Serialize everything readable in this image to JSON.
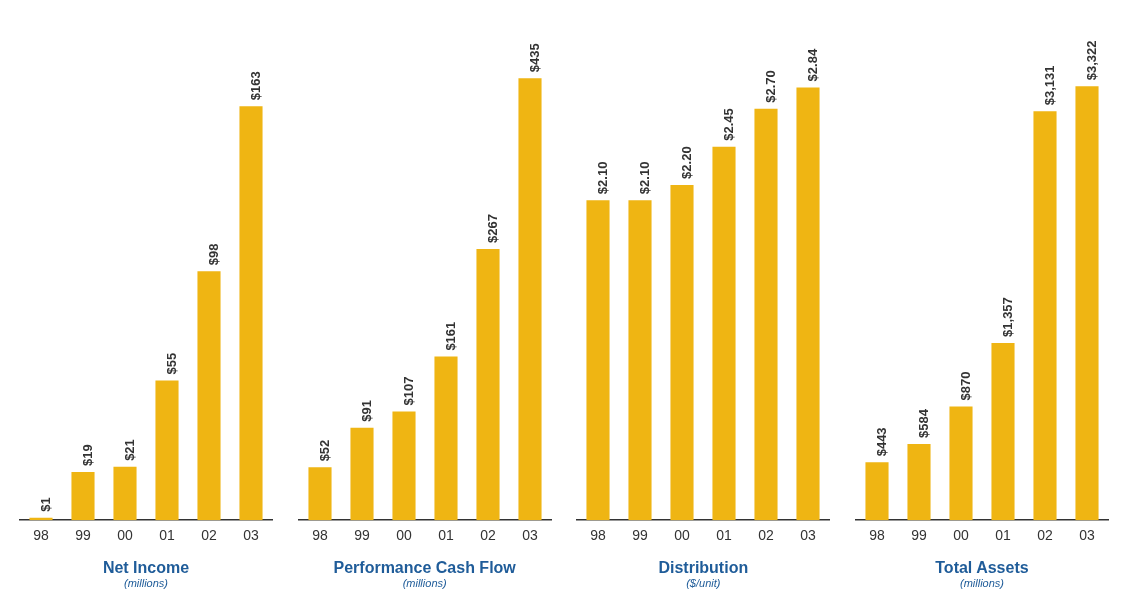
{
  "chart_data": [
    {
      "type": "bar",
      "title": "Net Income",
      "subtitle": "(millions)",
      "categories": [
        "98",
        "99",
        "00",
        "01",
        "02",
        "03"
      ],
      "values": [
        1,
        19,
        21,
        55,
        98,
        163
      ],
      "value_labels": [
        "$1",
        "$19",
        "$21",
        "$55",
        "$98",
        "$163"
      ],
      "color": "#efb513"
    },
    {
      "type": "bar",
      "title": "Performance Cash Flow",
      "subtitle": "(millions)",
      "categories": [
        "98",
        "99",
        "00",
        "01",
        "02",
        "03"
      ],
      "values": [
        52,
        91,
        107,
        161,
        267,
        435
      ],
      "value_labels": [
        "$52",
        "$91",
        "$107",
        "$161",
        "$267",
        "$435"
      ],
      "color": "#efb513"
    },
    {
      "type": "bar",
      "title": "Distribution",
      "subtitle": "($/unit)",
      "categories": [
        "98",
        "99",
        "00",
        "01",
        "02",
        "03"
      ],
      "values": [
        2.1,
        2.1,
        2.2,
        2.45,
        2.7,
        2.84
      ],
      "value_labels": [
        "$2.10",
        "$2.10",
        "$2.20",
        "$2.45",
        "$2.70",
        "$2.84"
      ],
      "color": "#efb513"
    },
    {
      "type": "bar",
      "title": "Total Assets",
      "subtitle": "(millions)",
      "categories": [
        "98",
        "99",
        "00",
        "01",
        "02",
        "03"
      ],
      "values": [
        443,
        584,
        870,
        1357,
        3131,
        3322
      ],
      "value_labels": [
        "$443",
        "$584",
        "$870",
        "$1,357",
        "$3,131",
        "$3,322"
      ],
      "color": "#efb513"
    }
  ]
}
